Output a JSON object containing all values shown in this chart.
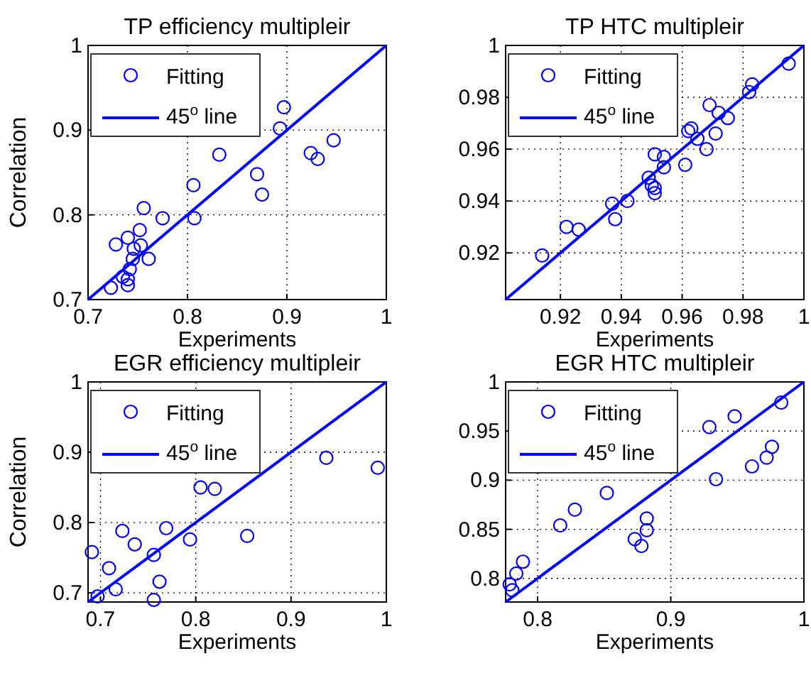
{
  "chart_data": [
    {
      "type": "scatter",
      "title": "TP efficiency multipleir",
      "xlabel": "Experiments",
      "ylabel": "Correlation",
      "xlim": [
        0.7,
        1
      ],
      "ylim": [
        0.7,
        1
      ],
      "xticks": [
        0.7,
        0.8,
        0.9,
        1
      ],
      "yticks": [
        0.7,
        0.8,
        0.9,
        1
      ],
      "grid": true,
      "legend": "top left",
      "series": [
        {
          "name": "Fitting",
          "marker": "circle",
          "color": "#0000ff",
          "x": [
            0.897,
            0.893,
            0.832,
            0.924,
            0.931,
            0.947,
            0.87,
            0.875,
            0.806,
            0.807,
            0.775,
            0.756,
            0.752,
            0.728,
            0.74,
            0.746,
            0.753,
            0.761,
            0.745,
            0.742,
            0.735,
            0.74,
            0.74,
            0.723
          ],
          "values": [
            0.927,
            0.902,
            0.871,
            0.873,
            0.866,
            0.888,
            0.848,
            0.824,
            0.835,
            0.796,
            0.796,
            0.808,
            0.782,
            0.765,
            0.773,
            0.76,
            0.764,
            0.748,
            0.748,
            0.736,
            0.727,
            0.724,
            0.717,
            0.714
          ]
        },
        {
          "name": "45$^{o}$ line",
          "type": "line",
          "color": "#0000ff",
          "x": [
            0.7,
            1
          ],
          "values": [
            0.7,
            1
          ]
        }
      ]
    },
    {
      "type": "scatter",
      "title": "TP HTC multipleir",
      "xlabel": "Experiments",
      "xlim": [
        0.902,
        1
      ],
      "ylim": [
        0.902,
        1
      ],
      "xticks": [
        0.92,
        0.94,
        0.96,
        0.98,
        1
      ],
      "yticks": [
        0.92,
        0.94,
        0.96,
        0.98,
        1
      ],
      "grid": true,
      "legend": "top left",
      "series": [
        {
          "name": "Fitting",
          "marker": "circle",
          "color": "#0000ff",
          "x": [
            0.914,
            0.922,
            0.926,
            0.937,
            0.938,
            0.942,
            0.949,
            0.95,
            0.951,
            0.951,
            0.951,
            0.954,
            0.954,
            0.961,
            0.962,
            0.963,
            0.965,
            0.968,
            0.969,
            0.971,
            0.972,
            0.975,
            0.982,
            0.983,
            0.995
          ],
          "values": [
            0.919,
            0.93,
            0.929,
            0.939,
            0.933,
            0.94,
            0.949,
            0.946,
            0.945,
            0.943,
            0.958,
            0.957,
            0.953,
            0.954,
            0.967,
            0.968,
            0.964,
            0.96,
            0.977,
            0.966,
            0.974,
            0.972,
            0.982,
            0.985,
            0.993
          ]
        },
        {
          "name": "45$^{o}$ line",
          "type": "line",
          "color": "#0000ff",
          "x": [
            0.902,
            1
          ],
          "values": [
            0.902,
            1
          ]
        }
      ]
    },
    {
      "type": "scatter",
      "title": "EGR efficiency multipleir",
      "xlabel": "Experiments",
      "ylabel": "Correlation",
      "xlim": [
        0.687,
        1
      ],
      "ylim": [
        0.687,
        1
      ],
      "xticks": [
        0.7,
        0.8,
        0.9,
        1
      ],
      "yticks": [
        0.7,
        0.8,
        0.9,
        1
      ],
      "grid": true,
      "legend": "top left",
      "series": [
        {
          "name": "Fitting",
          "marker": "circle",
          "color": "#0000ff",
          "x": [
            0.691,
            0.697,
            0.723,
            0.736,
            0.709,
            0.716,
            0.756,
            0.769,
            0.762,
            0.756,
            0.794,
            0.805,
            0.82,
            0.854,
            0.937,
            0.991
          ],
          "values": [
            0.758,
            0.695,
            0.788,
            0.769,
            0.735,
            0.705,
            0.754,
            0.792,
            0.716,
            0.69,
            0.776,
            0.85,
            0.848,
            0.781,
            0.892,
            0.878
          ]
        },
        {
          "name": "45$^{o}$ line",
          "type": "line",
          "color": "#0000ff",
          "x": [
            0.687,
            1
          ],
          "values": [
            0.687,
            1
          ]
        }
      ]
    },
    {
      "type": "scatter",
      "title": "EGR HTC multipleir",
      "xlabel": "Experiments",
      "xlim": [
        0.776,
        1
      ],
      "ylim": [
        0.776,
        1
      ],
      "xticks": [
        0.8,
        0.9,
        1
      ],
      "yticks": [
        0.8,
        0.85,
        0.9,
        0.95,
        1
      ],
      "grid": true,
      "legend": "top left",
      "series": [
        {
          "name": "Fitting",
          "marker": "circle",
          "color": "#0000ff",
          "x": [
            0.779,
            0.781,
            0.784,
            0.789,
            0.817,
            0.828,
            0.852,
            0.873,
            0.878,
            0.882,
            0.882,
            0.929,
            0.934,
            0.948,
            0.961,
            0.972,
            0.976,
            0.983
          ],
          "values": [
            0.794,
            0.788,
            0.805,
            0.817,
            0.854,
            0.87,
            0.887,
            0.84,
            0.833,
            0.861,
            0.849,
            0.954,
            0.901,
            0.965,
            0.914,
            0.923,
            0.934,
            0.979
          ]
        },
        {
          "name": "45$^{o}$ line",
          "type": "line",
          "color": "#0000ff",
          "x": [
            0.776,
            1
          ],
          "values": [
            0.776,
            1
          ]
        }
      ]
    }
  ]
}
